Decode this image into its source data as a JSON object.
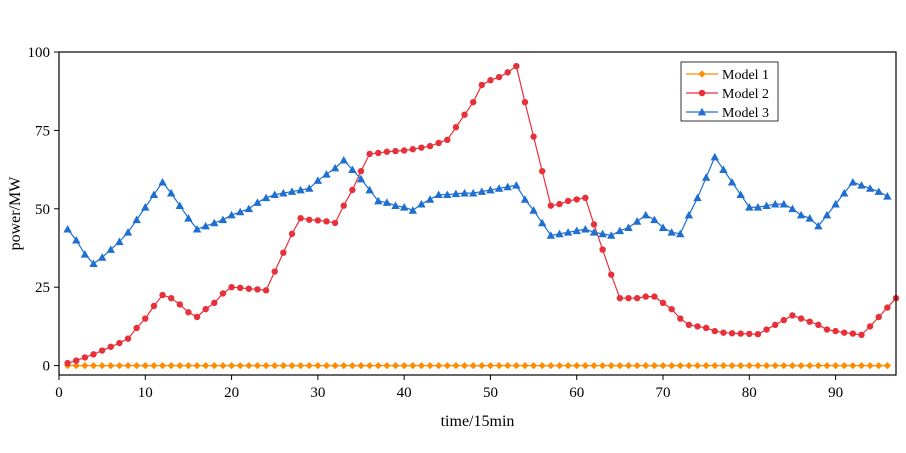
{
  "chart_data": {
    "type": "line",
    "title": "",
    "xlabel": "time/15min",
    "ylabel": "power/MW",
    "xlim": [
      0,
      97
    ],
    "ylim": [
      -3,
      100
    ],
    "xticks": [
      0,
      10,
      20,
      30,
      40,
      50,
      60,
      70,
      80,
      90
    ],
    "xtick_labels": [
      "0",
      "10",
      "20",
      "30",
      "40",
      "50",
      "60",
      "70",
      "80",
      "90"
    ],
    "yticks": [
      0,
      25,
      50,
      75,
      100
    ],
    "ytick_labels": [
      "0",
      "25",
      "50",
      "75",
      "100"
    ],
    "grid": false,
    "legend_position": "top-right",
    "series": [
      {
        "name": "Model 1",
        "color": "#ff8c00",
        "marker": "diamond",
        "values": [
          0,
          0,
          0,
          0,
          0,
          0,
          0,
          0,
          0,
          0,
          0,
          0,
          0,
          0,
          0,
          0,
          0,
          0,
          0,
          0,
          0,
          0,
          0,
          0,
          0,
          0,
          0,
          0,
          0,
          0,
          0,
          0,
          0,
          0,
          0,
          0,
          0,
          0,
          0,
          0,
          0,
          0,
          0,
          0,
          0,
          0,
          0,
          0,
          0,
          0,
          0,
          0,
          0,
          0,
          0,
          0,
          0,
          0,
          0,
          0,
          0,
          0,
          0,
          0,
          0,
          0,
          0,
          0,
          0,
          0,
          0,
          0,
          0,
          0,
          0,
          0,
          0,
          0,
          0,
          0,
          0,
          0,
          0,
          0,
          0,
          0,
          0,
          0,
          0,
          0,
          0,
          0,
          0,
          0,
          0,
          0
        ]
      },
      {
        "name": "Model 2",
        "color": "#e8303a",
        "marker": "circle",
        "values": [
          0.8,
          1.6,
          2.6,
          3.6,
          4.8,
          6,
          7.2,
          8.6,
          12,
          15,
          19,
          22.5,
          21.5,
          19.5,
          17,
          15.5,
          18,
          20,
          23,
          25,
          24.8,
          24.5,
          24.3,
          24,
          30,
          36,
          42,
          47,
          46.5,
          46.3,
          46,
          45.5,
          51,
          56,
          62,
          67.5,
          67.8,
          68.2,
          68.4,
          68.6,
          69,
          69.5,
          70,
          71,
          72,
          76,
          80,
          84,
          89.5,
          91,
          92,
          93.5,
          95.5,
          84,
          73,
          62,
          51,
          51.5,
          52.5,
          53,
          53.5,
          45,
          37,
          29,
          21.5,
          21.5,
          21.5,
          22,
          22,
          20,
          18,
          15,
          13,
          12.5,
          12,
          11,
          10.5,
          10.3,
          10.2,
          10.1,
          10,
          11.5,
          13,
          14.5,
          16,
          15,
          14,
          13,
          11.5,
          11,
          10.5,
          10.2,
          9.8,
          12.5,
          15.5,
          18.5,
          21.5
        ]
      },
      {
        "name": "Model 3",
        "color": "#1f6fd1",
        "marker": "triangle",
        "values": [
          43.5,
          40,
          35.5,
          32.5,
          34.5,
          37,
          39.5,
          42.5,
          46.5,
          50.5,
          54.5,
          58.5,
          55,
          51,
          47,
          43.5,
          44.5,
          45.5,
          46.5,
          48,
          49,
          50,
          52,
          53.5,
          54.5,
          55,
          55.5,
          56,
          56.5,
          59,
          61,
          63,
          65.5,
          62.5,
          59.5,
          56,
          52.5,
          52,
          51,
          50.5,
          49.5,
          51.5,
          53,
          54.5,
          54.5,
          54.8,
          55,
          55,
          55.5,
          56,
          56.5,
          57,
          57.5,
          53,
          49.5,
          45.5,
          41.5,
          42,
          42.5,
          43,
          43.5,
          42.5,
          42,
          41.5,
          43,
          44,
          46,
          48,
          46.5,
          44,
          42.5,
          42,
          48,
          53.5,
          60,
          66.5,
          62.5,
          58.5,
          54.5,
          50.5,
          50.5,
          51,
          51.5,
          51.5,
          50,
          48,
          47,
          44.5,
          48,
          51.5,
          55,
          58.5,
          57.5,
          56.5,
          55.5,
          54
        ]
      }
    ]
  }
}
